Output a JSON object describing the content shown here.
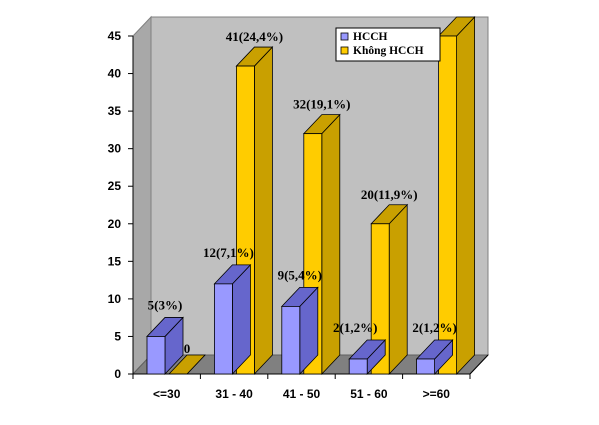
{
  "chart_data": {
    "type": "bar",
    "style": "3d-clustered",
    "categories": [
      "<=30",
      "31 - 40",
      "41 - 50",
      "51 - 60",
      ">=60"
    ],
    "series": [
      {
        "name": "HCCH",
        "values": [
          5,
          12,
          9,
          2,
          2
        ],
        "labels": [
          "5(3%)",
          "12(7,1%)",
          "9(5,4%)",
          "2(1,2%)",
          "2(1,2%)"
        ],
        "color": "#9999ff",
        "top_color": "#6666cc"
      },
      {
        "name": "Không HCCH",
        "values": [
          0,
          41,
          32,
          20,
          45
        ],
        "labels": [
          "0",
          "41(24,4%)",
          "32(19,1%)",
          "20(11,9%)",
          ""
        ],
        "color": "#ffcc00",
        "top_color": "#c9a000"
      }
    ],
    "y_ticks": [
      0,
      5,
      10,
      15,
      20,
      25,
      30,
      35,
      40,
      45
    ],
    "ylim": [
      0,
      45
    ],
    "grid": false,
    "legend": "top-right",
    "wall_color": "#c0c0c0",
    "floor_color": "#808080"
  }
}
